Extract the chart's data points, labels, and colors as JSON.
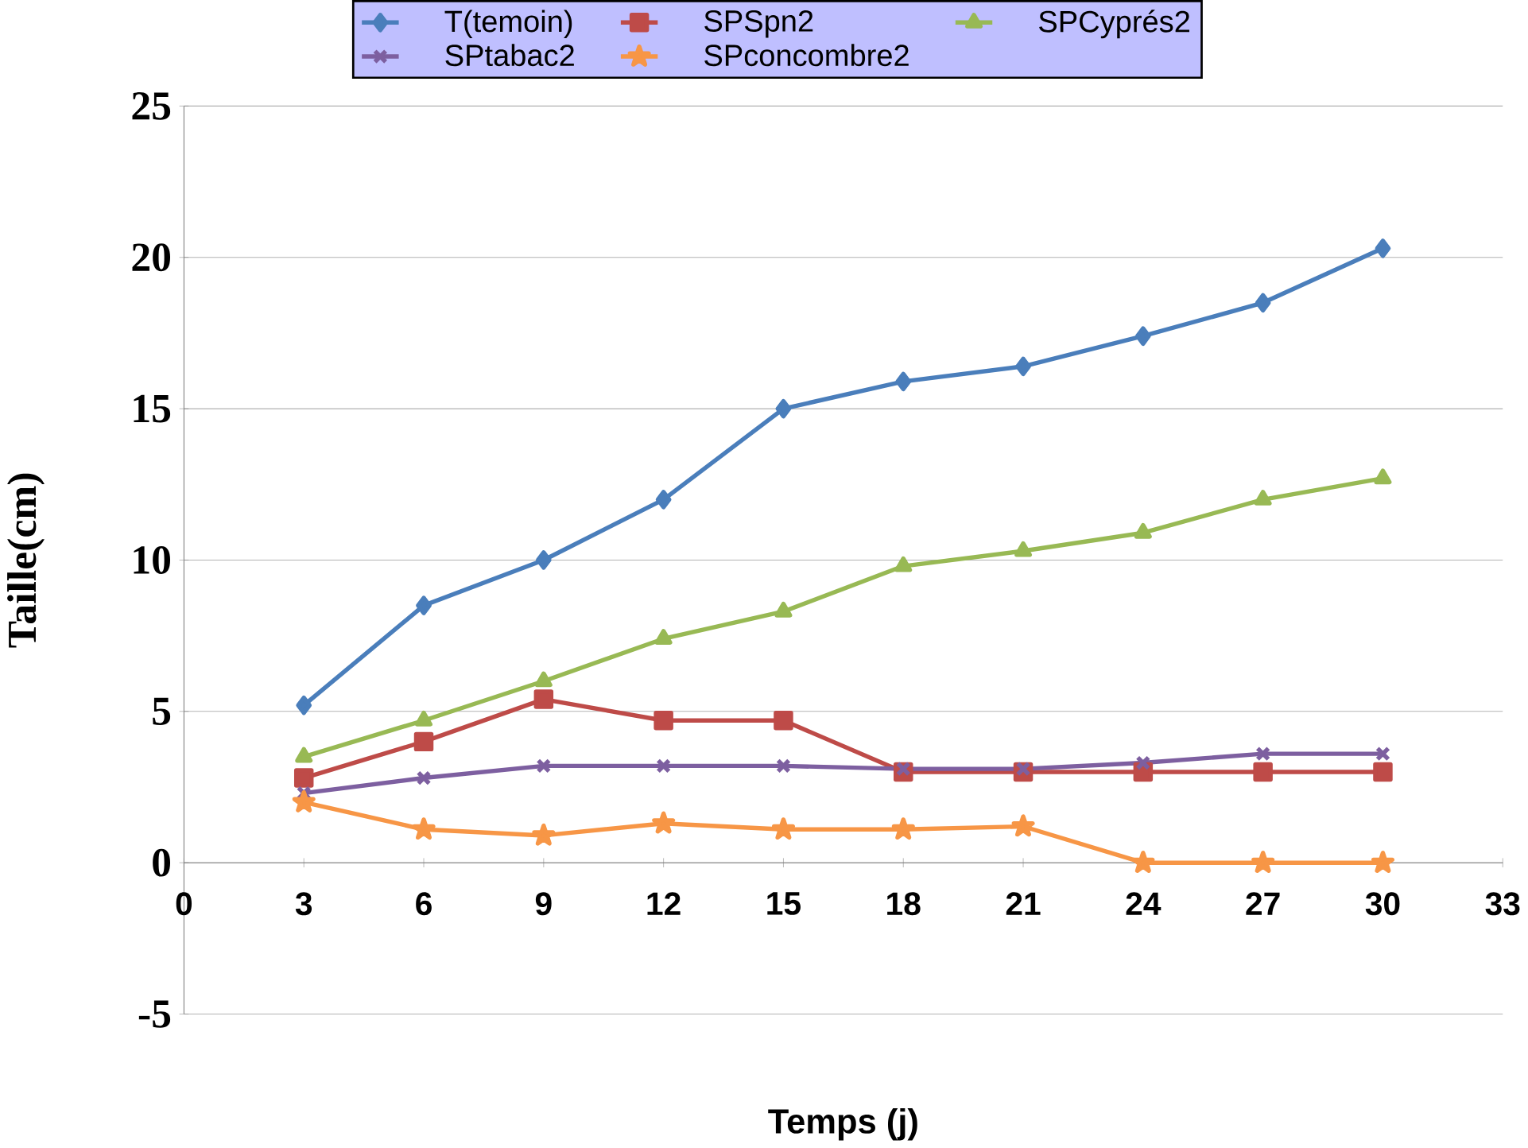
{
  "chart_data": {
    "type": "line",
    "xlabel": "Temps (j)",
    "ylabel": "Taille(cm)",
    "x": [
      3,
      6,
      9,
      12,
      15,
      18,
      21,
      24,
      27,
      30
    ],
    "series": [
      {
        "name": "T(temoin)",
        "color": "#4a7ebb",
        "marker": "diamond",
        "values": [
          5.2,
          8.5,
          10.0,
          12.0,
          15.0,
          15.9,
          16.4,
          17.4,
          18.5,
          20.3
        ]
      },
      {
        "name": "SPSpn2",
        "color": "#be4b48",
        "marker": "square",
        "values": [
          2.8,
          4.0,
          5.4,
          4.7,
          4.7,
          3.0,
          3.0,
          3.0,
          3.0,
          3.0
        ]
      },
      {
        "name": "SPCyprés2",
        "color": "#98b954",
        "marker": "triangle",
        "values": [
          3.5,
          4.7,
          6.0,
          7.4,
          8.3,
          9.8,
          10.3,
          10.9,
          12.0,
          12.7
        ]
      },
      {
        "name": "SPtabac2",
        "color": "#7d5fa0",
        "marker": "cross",
        "values": [
          2.3,
          2.8,
          3.2,
          3.2,
          3.2,
          3.1,
          3.1,
          3.3,
          3.6,
          3.6
        ]
      },
      {
        "name": "SPconcombre2",
        "color": "#f79646",
        "marker": "star",
        "values": [
          2.0,
          1.1,
          0.9,
          1.3,
          1.1,
          1.1,
          1.2,
          0.0,
          0.0,
          0.0
        ]
      }
    ],
    "xlim": [
      0,
      33
    ],
    "ylim": [
      -5,
      25
    ],
    "xticks": [
      0,
      3,
      6,
      9,
      12,
      15,
      18,
      21,
      24,
      27,
      30,
      33
    ],
    "yticks": [
      -5,
      0,
      5,
      10,
      15,
      20,
      25
    ],
    "grid": "y",
    "legend": "top",
    "line_style": "solid"
  }
}
